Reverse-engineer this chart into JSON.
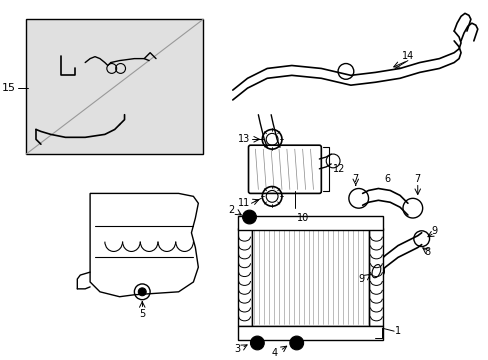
{
  "background_color": "#ffffff",
  "line_color": "#000000",
  "fig_width": 4.89,
  "fig_height": 3.6,
  "dpi": 100,
  "inset_fill": "#e0e0e0",
  "label_fs": 7.0
}
